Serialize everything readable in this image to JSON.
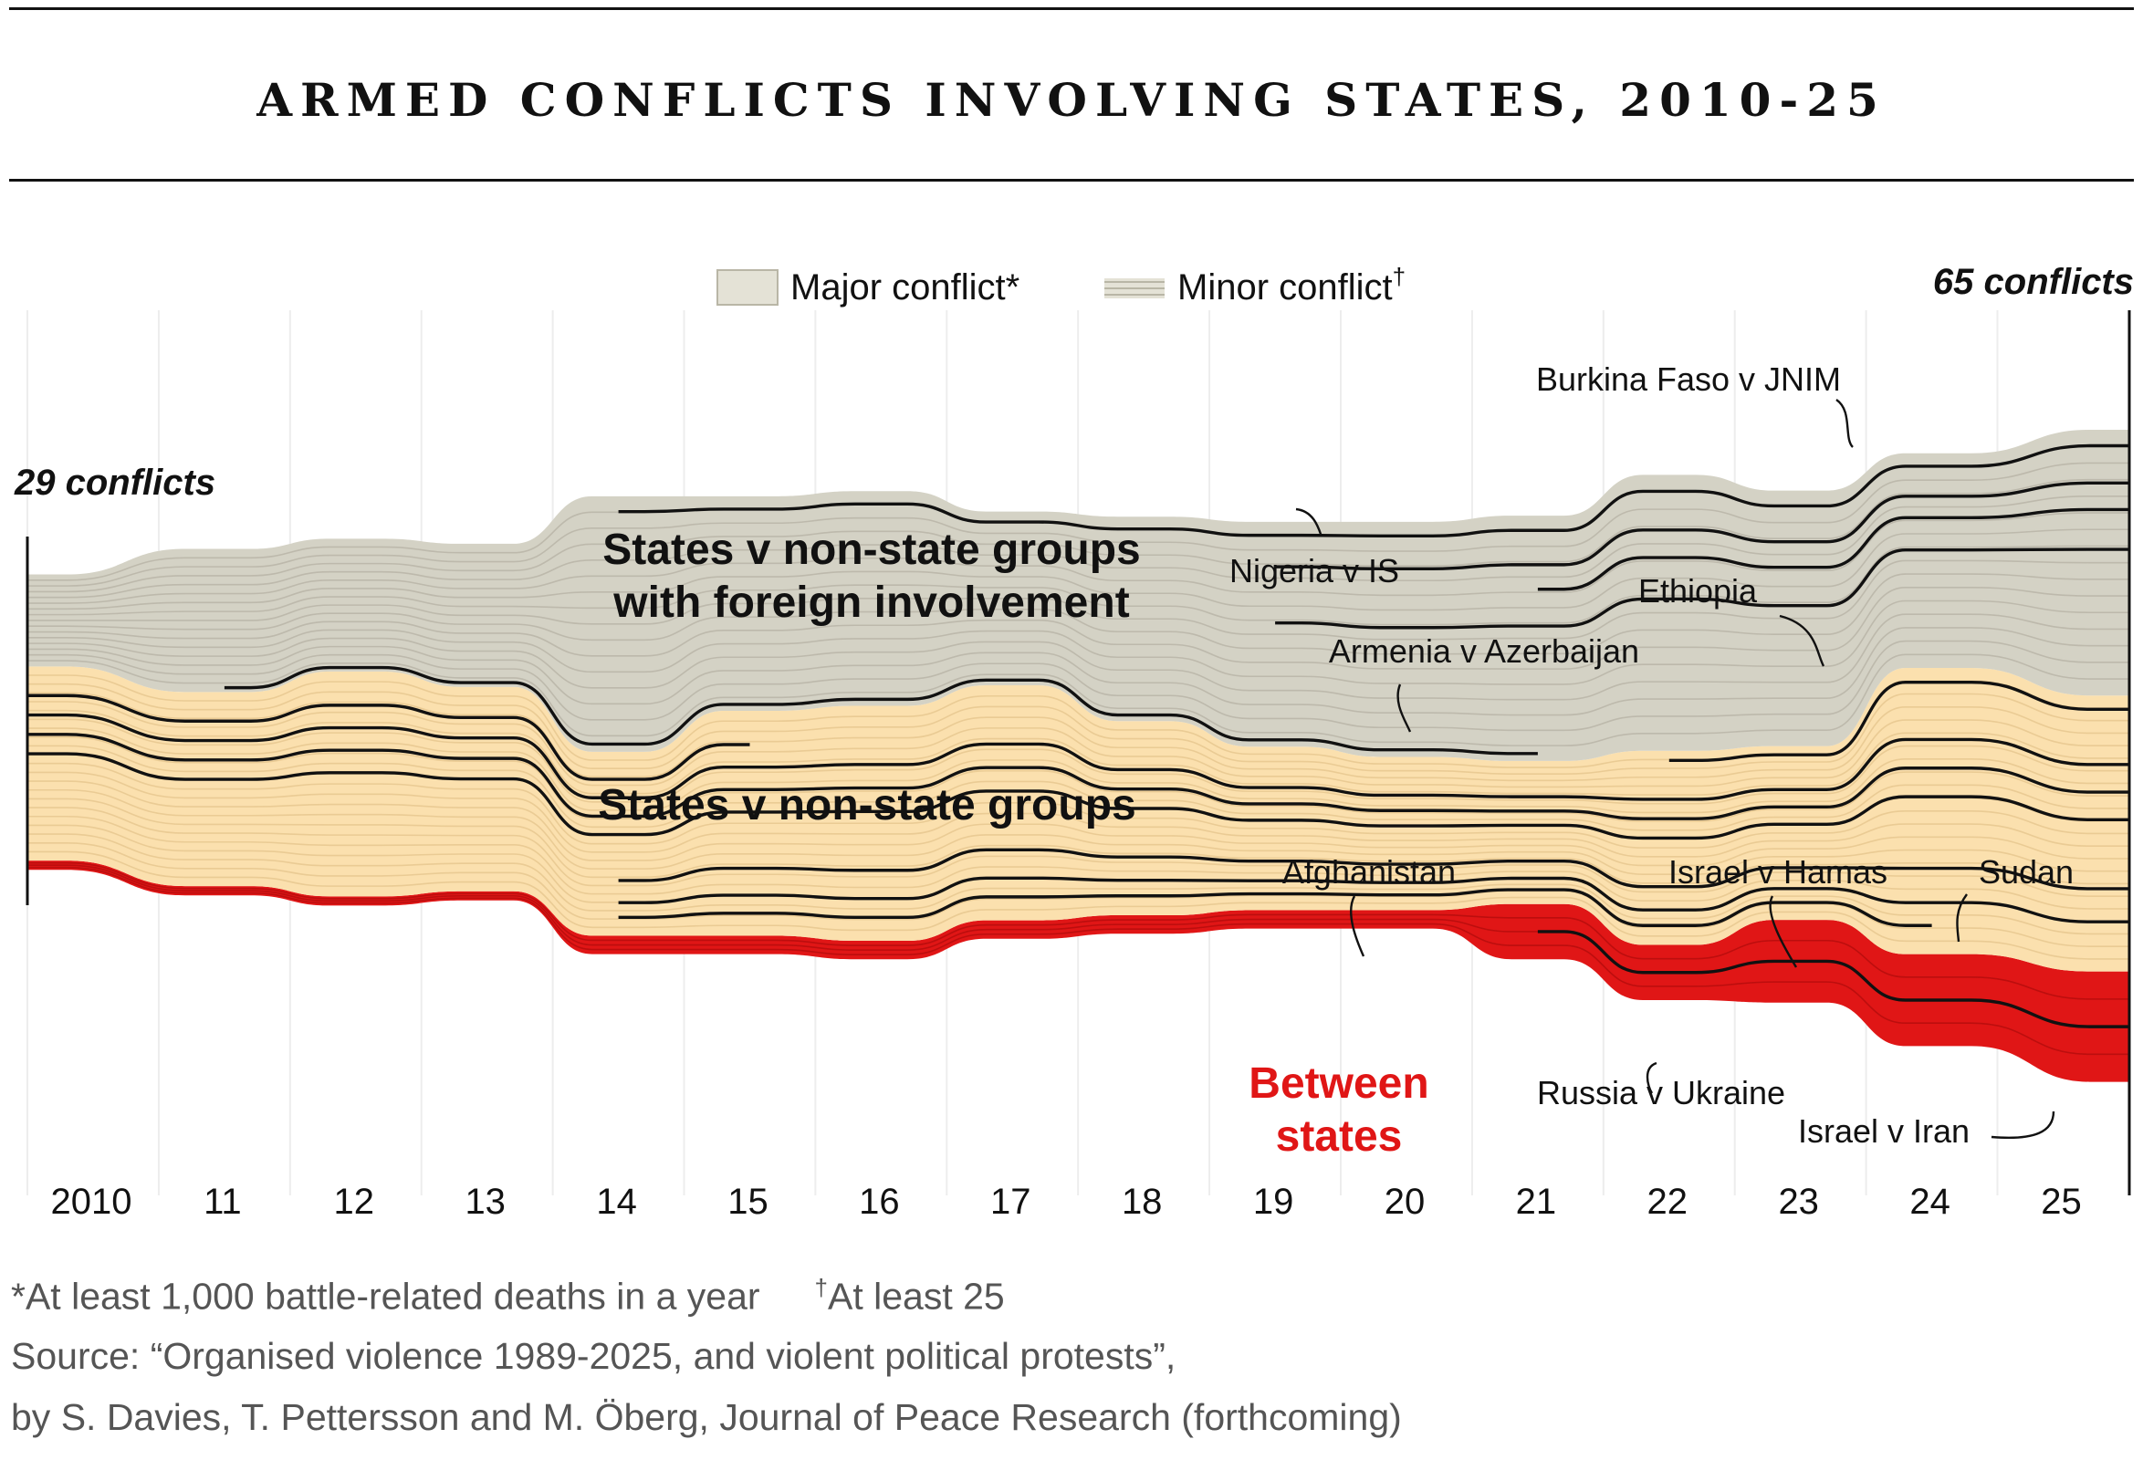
{
  "title": "ARMED CONFLICTS INVOLVING STATES, 2010-25",
  "legend": {
    "major": "Major conflict*",
    "minor": "Minor conflict",
    "minor_mark": "†"
  },
  "colors": {
    "major_fill": "#cfccbd",
    "foreign_fill": "#d4d2c5",
    "nonstate_fill": "#fbe0ae",
    "between_fill": "#e01616",
    "line": "#111111",
    "thin_line": "#ffffff"
  },
  "chart_data": {
    "type": "area",
    "x_ticks": [
      "2010",
      "11",
      "12",
      "13",
      "14",
      "15",
      "16",
      "17",
      "18",
      "19",
      "20",
      "21",
      "22",
      "23",
      "24",
      "25"
    ],
    "x": [
      2010,
      2011,
      2012,
      2013,
      2014,
      2015,
      2016,
      2017,
      2018,
      2019,
      2020,
      2021,
      2022,
      2023,
      2024,
      2025
    ],
    "series": [
      {
        "name": "States v non-state groups with foreign involvement",
        "values": [
          9,
          14,
          13,
          14,
          25,
          21,
          21,
          17,
          20,
          22,
          23,
          24,
          27,
          25,
          21,
          26
        ]
      },
      {
        "name": "States v non-state groups",
        "values": [
          19,
          19,
          22,
          20,
          18,
          22,
          23,
          23,
          19,
          16,
          15,
          14,
          19,
          17,
          28,
          27
        ]
      },
      {
        "name": "Between states",
        "values": [
          1,
          1,
          1,
          1,
          2,
          2,
          2,
          2,
          2,
          2,
          2,
          6,
          6,
          9,
          10,
          12
        ]
      }
    ],
    "start_label": "29 conflicts",
    "end_label": "65 conflicts",
    "annotations": [
      "Burkina Faso v JNIM",
      "Nigeria v IS",
      "Ethiopia",
      "Armenia v Azerbaijan",
      "Afghanistan",
      "Israel v Hamas",
      "Sudan",
      "Russia v Ukraine",
      "Israel v Iran"
    ],
    "grid": true
  },
  "footnotes": {
    "major_def": "*At least 1,000 battle-related deaths in a year",
    "minor_mark": "†",
    "minor_def": "At least 25",
    "source_line1": "Source: “Organised violence 1989-2025, and violent political protests”,",
    "source_line2": "by S. Davies, T. Pettersson and M. Öberg, Journal of Peace Research (forthcoming)"
  }
}
